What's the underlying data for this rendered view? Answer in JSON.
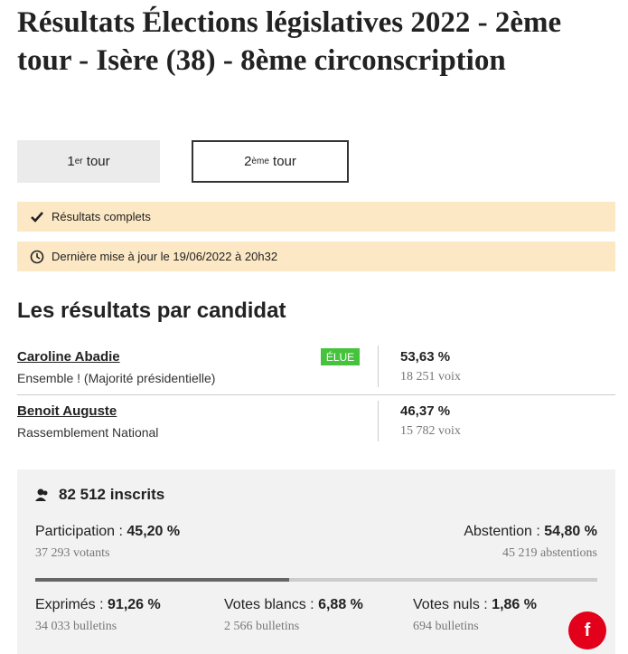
{
  "header": {
    "title": "Résultats Élections législatives 2022 - 2ème tour - Isère (38) - 8ème circonscription"
  },
  "tabs": [
    {
      "num": "1",
      "sup": "er",
      "label": "tour"
    },
    {
      "num": "2",
      "sup": "ème",
      "label": "tour"
    }
  ],
  "status": [
    "Résultats complets",
    "Dernière mise à jour le 19/06/2022 à 20h32"
  ],
  "section_title": "Les résultats par candidat",
  "candidates": [
    {
      "name": "Caroline Abadie",
      "party": "Ensemble ! (Majorité présidentielle)",
      "badge": "ÉLUE",
      "percent": "53,63 %",
      "votes": "18 251 voix"
    },
    {
      "name": "Benoit Auguste",
      "party": "Rassemblement National",
      "percent": "46,37 %",
      "votes": "15 782 voix"
    }
  ],
  "stats": {
    "registered": "82 512 inscrits",
    "participation": {
      "label": "Participation :",
      "value": "45,20 %",
      "detail": "37 293 votants"
    },
    "abstention": {
      "label": "Abstention :",
      "value": "54,80 %",
      "detail": "45 219 abstentions"
    },
    "participation_bar": 45.2,
    "breakdown": [
      {
        "label": "Exprimés :",
        "value": "91,26 %",
        "detail": "34 033 bulletins"
      },
      {
        "label": "Votes blancs :",
        "value": "6,88 %",
        "detail": "2 566 bulletins"
      },
      {
        "label": "Votes nuls :",
        "value": "1,86 %",
        "detail": "694 bulletins"
      }
    ]
  },
  "share_button": "f"
}
